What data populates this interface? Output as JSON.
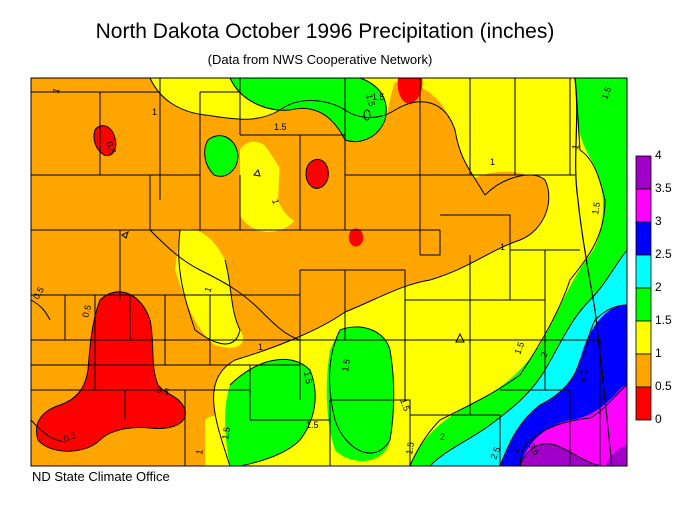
{
  "title": "North Dakota October 1996 Precipitation (inches)",
  "subtitle": "(Data from NWS Cooperative Network)",
  "footer": "ND State Climate Office",
  "colors": {
    "c0": "#ff0000",
    "c05": "#ffa500",
    "c1": "#ffff00",
    "c15": "#00ff00",
    "c2": "#00ffff",
    "c25": "#0000ff",
    "c3": "#ff00ff",
    "c35": "#a000c8"
  },
  "legend": {
    "labels": [
      "4",
      "3.5",
      "3",
      "2.5",
      "2",
      "1.5",
      "1",
      "0.5",
      "0"
    ],
    "colors": [
      "#a000c8",
      "#ff00ff",
      "#0000ff",
      "#00ffff",
      "#00ff00",
      "#ffff00",
      "#ffa500",
      "#ff0000"
    ]
  },
  "contour_labels": [
    "1",
    "1",
    "1.5",
    "1.5",
    "1.5",
    "0.5",
    "1",
    "1",
    "1",
    "1.5",
    "1",
    "1",
    "0.5",
    "1",
    "0.5",
    "0.5",
    "1",
    "1.5",
    "1.5",
    "1.5",
    "1.5",
    "1.5",
    "2",
    "2",
    "2.5",
    "2.5",
    "3",
    "3.5",
    "0.5",
    "1.5",
    "1.5",
    "1.5"
  ]
}
